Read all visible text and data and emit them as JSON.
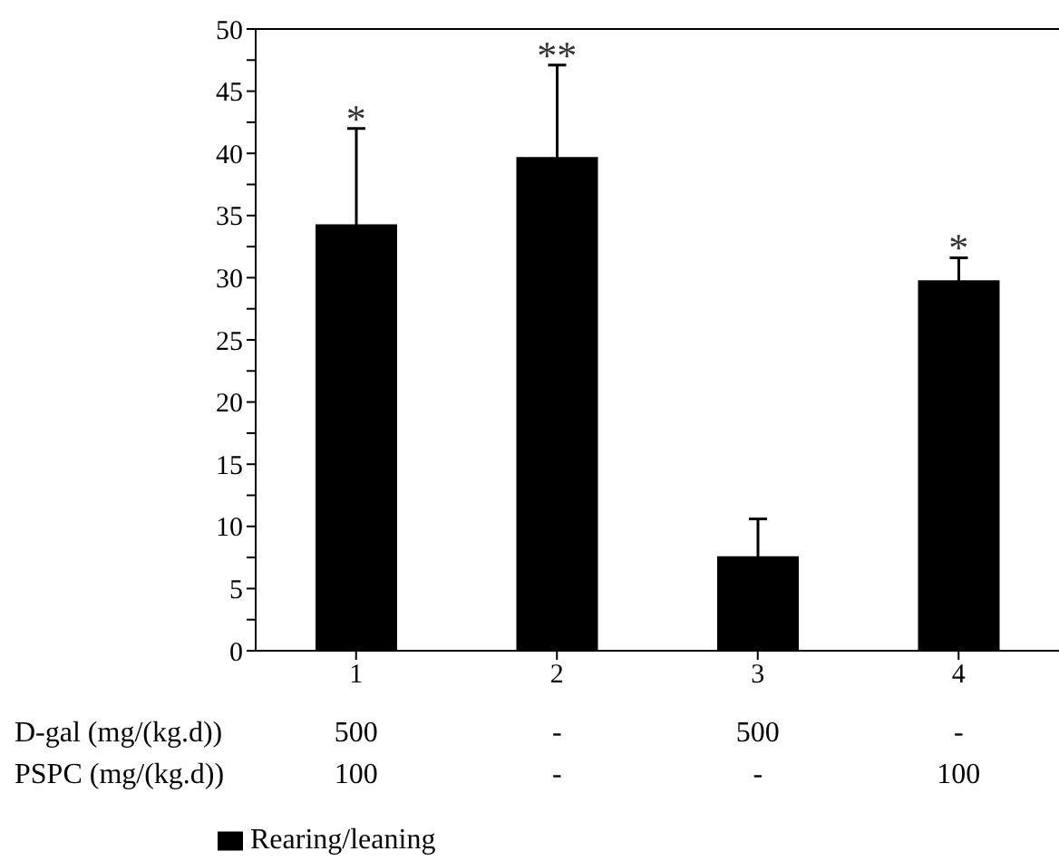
{
  "chart_data": {
    "type": "bar",
    "categories": [
      "1",
      "2",
      "3",
      "4"
    ],
    "series": [
      {
        "name": "Rearing/leaning",
        "color": "#000000",
        "values": [
          34.3,
          39.7,
          7.6,
          29.8
        ],
        "errors": [
          7.7,
          7.4,
          3.0,
          1.8
        ]
      }
    ],
    "ylim": [
      0,
      50
    ],
    "yticks": [
      0,
      {
        "value": 2.5,
        "label": null
      },
      5,
      {
        "value": 7.5,
        "label": null
      },
      10,
      {
        "value": 12.5,
        "label": null
      },
      15,
      {
        "value": 17.5,
        "label": null
      },
      20,
      {
        "value": 22.5,
        "label": null
      },
      25,
      {
        "value": 27.5,
        "label": null
      },
      30,
      {
        "value": 32.5,
        "label": null
      },
      35,
      {
        "value": 37.5,
        "label": null
      },
      40,
      {
        "value": 42.5,
        "label": null
      },
      45,
      {
        "value": 47.5,
        "label": null
      },
      50
    ],
    "legend": "bottom",
    "annotations": [
      {
        "text": "*",
        "x": "1",
        "y": 42
      },
      {
        "text": "**",
        "x": "2",
        "y": 47.1
      },
      {
        "text": "*",
        "x": "4",
        "y": 31.6
      },
      "D-gal (mg/(kg.d))",
      "500",
      "-",
      "500",
      "-",
      "PSPC (mg/(kg.d))",
      "100",
      "-",
      "-",
      "100"
    ]
  }
}
